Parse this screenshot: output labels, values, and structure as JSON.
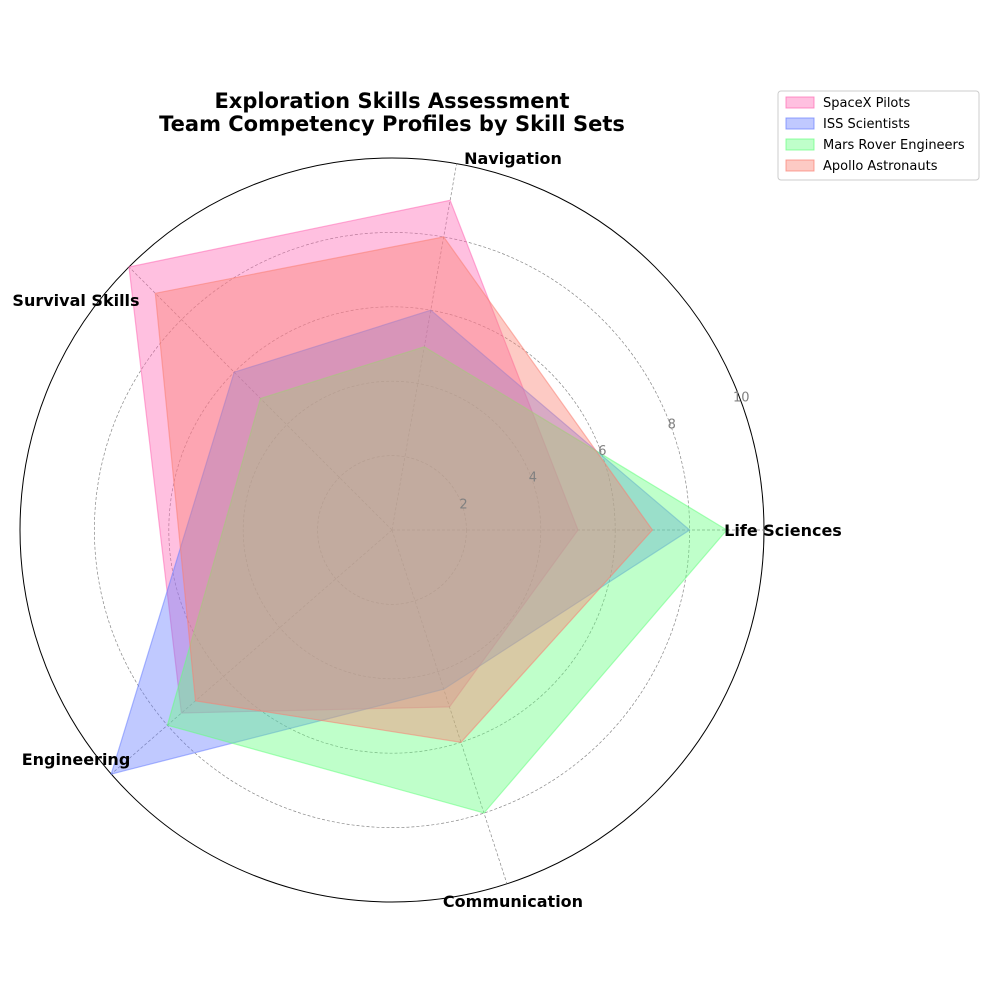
{
  "chart_data": {
    "type": "radar",
    "title": "Exploration Skills Assessment",
    "subtitle": "Team Competency Profiles by Skill Sets",
    "categories": [
      "Life Sciences",
      "Navigation",
      "Survival Skills",
      "Engineering",
      "Communication"
    ],
    "rlim": [
      0,
      10
    ],
    "rticks": [
      2,
      4,
      6,
      8,
      10
    ],
    "grid": true,
    "legend_position": "top-right",
    "series": [
      {
        "name": "SpaceX Pilots",
        "values": [
          5,
          9,
          10,
          7.5,
          5
        ],
        "color": "#ff69b4"
      },
      {
        "name": "ISS Scientists",
        "values": [
          8,
          6,
          6,
          10,
          4.5
        ],
        "color": "#6a7fff"
      },
      {
        "name": "Mars Rover Engineers",
        "values": [
          9,
          5,
          5,
          8,
          8
        ],
        "color": "#66ff80"
      },
      {
        "name": "Apollo Astronauts",
        "values": [
          7,
          8,
          9,
          7,
          6
        ],
        "color": "#fa8072"
      }
    ]
  }
}
